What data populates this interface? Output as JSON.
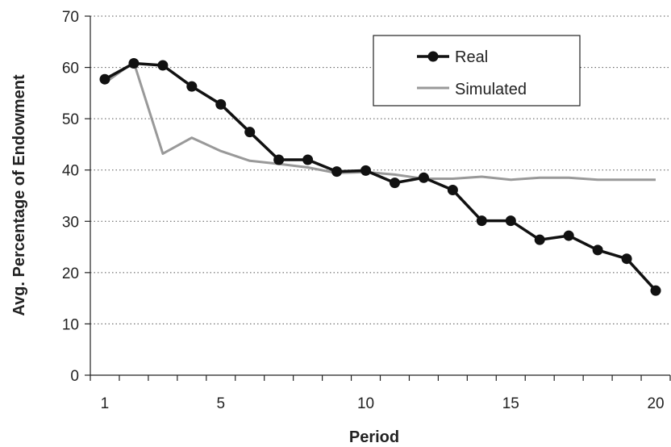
{
  "chart_data": {
    "type": "line",
    "xlabel": "Period",
    "ylabel": "Avg. Percentage of Endowment",
    "x": [
      1,
      2,
      3,
      4,
      5,
      6,
      7,
      8,
      9,
      10,
      11,
      12,
      13,
      14,
      15,
      16,
      17,
      18,
      19,
      20
    ],
    "xticks": [
      1,
      5,
      10,
      15,
      20
    ],
    "ylim": [
      0,
      70
    ],
    "yticks": [
      0,
      10,
      20,
      30,
      40,
      50,
      60,
      70
    ],
    "grid": "horizontal dotted",
    "legend_position": "top-right",
    "series": [
      {
        "name": "Real",
        "color": "#111111",
        "markers": true,
        "values": [
          57.7,
          60.8,
          60.4,
          56.3,
          52.8,
          47.4,
          42.0,
          42.0,
          39.7,
          39.9,
          37.5,
          38.5,
          36.1,
          30.1,
          30.1,
          26.4,
          27.2,
          24.4,
          22.7,
          16.5
        ]
      },
      {
        "name": "Simulated",
        "color": "#999999",
        "markers": false,
        "values": [
          57.0,
          61.0,
          43.2,
          46.3,
          43.7,
          41.8,
          41.2,
          40.5,
          39.4,
          39.6,
          39.1,
          38.3,
          38.3,
          38.7,
          38.1,
          38.5,
          38.5,
          38.1,
          38.1,
          38.1
        ]
      }
    ]
  }
}
